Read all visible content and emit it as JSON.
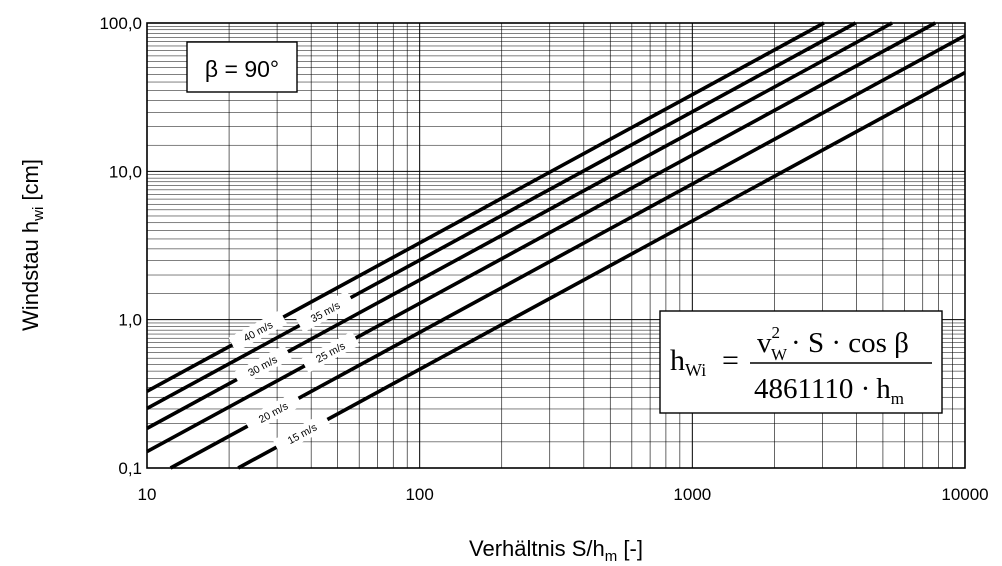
{
  "chart_data": {
    "type": "line",
    "title": "",
    "xlabel": "Verhältnis S/h",
    "xlabel_sub": "m",
    "xlabel_suffix": " [-]",
    "ylabel": "Windstau h",
    "ylabel_sub": "wi",
    "ylabel_suffix": " [cm]",
    "x_scale": "log",
    "y_scale": "log",
    "xlim": [
      10,
      10000
    ],
    "ylim": [
      0.1,
      100
    ],
    "x_ticks": [
      10,
      100,
      1000,
      10000
    ],
    "x_tick_labels": [
      "10",
      "100",
      "1000",
      "10000"
    ],
    "y_ticks": [
      0.1,
      1,
      10,
      100
    ],
    "y_tick_labels": [
      "0,1",
      "1,0",
      "10,0",
      "100,0"
    ],
    "grid": true,
    "angle_label": "β = 90°",
    "formula": {
      "lhs": "h",
      "lhs_sub": "Wi",
      "eq": "=",
      "num_v": "v",
      "num_sup": "2",
      "num_sub": "W",
      "num_rest": "· S · cos β",
      "den_const": "4861110 ·",
      "den_h": "h",
      "den_sub": "m"
    },
    "series": [
      {
        "name": "40 m/s",
        "wind_speed": 40,
        "x": [
          10,
          3038
        ],
        "y": [
          0.329,
          100
        ]
      },
      {
        "name": "35 m/s",
        "wind_speed": 35,
        "x": [
          10,
          3968
        ],
        "y": [
          0.252,
          100
        ]
      },
      {
        "name": "30 m/s",
        "wind_speed": 30,
        "x": [
          10,
          5401
        ],
        "y": [
          0.185,
          100
        ]
      },
      {
        "name": "25 m/s",
        "wind_speed": 25,
        "x": [
          10,
          7778
        ],
        "y": [
          0.129,
          100
        ]
      },
      {
        "name": "20 m/s",
        "wind_speed": 20,
        "x": [
          12.2,
          10000
        ],
        "y": [
          0.1,
          82.3
        ]
      },
      {
        "name": "15 m/s",
        "wind_speed": 15,
        "x": [
          21.6,
          10000
        ],
        "y": [
          0.1,
          46.3
        ]
      }
    ]
  }
}
